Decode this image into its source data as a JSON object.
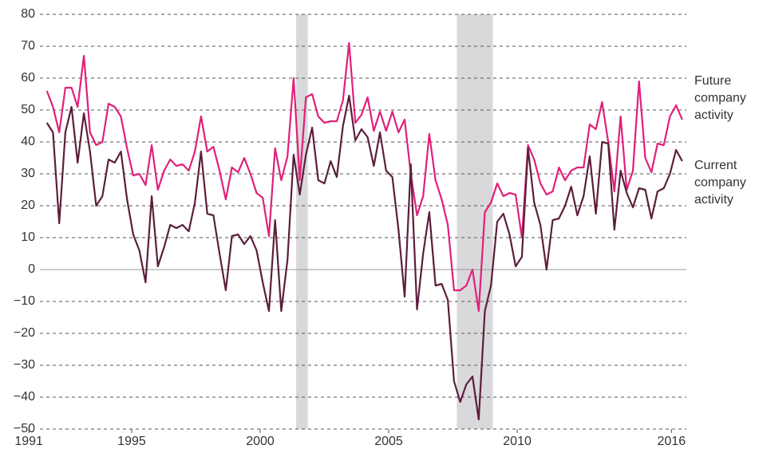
{
  "chart_data": {
    "type": "line",
    "x": [
      1991.7,
      1991.94,
      1992.18,
      1992.42,
      1992.66,
      1992.9,
      1993.14,
      1993.38,
      1993.62,
      1993.86,
      1994.1,
      1994.34,
      1994.58,
      1994.82,
      1995.06,
      1995.3,
      1995.54,
      1995.78,
      1996.02,
      1996.26,
      1996.5,
      1996.74,
      1996.98,
      1997.22,
      1997.46,
      1997.7,
      1997.94,
      1998.18,
      1998.42,
      1998.66,
      1998.9,
      1999.14,
      1999.38,
      1999.62,
      1999.86,
      2000.1,
      2000.34,
      2000.58,
      2000.82,
      2001.06,
      2001.3,
      2001.54,
      2001.78,
      2002.02,
      2002.26,
      2002.5,
      2002.74,
      2002.98,
      2003.22,
      2003.46,
      2003.7,
      2003.94,
      2004.18,
      2004.42,
      2004.66,
      2004.9,
      2005.14,
      2005.38,
      2005.62,
      2005.86,
      2006.1,
      2006.34,
      2006.58,
      2006.82,
      2007.06,
      2007.3,
      2007.54,
      2007.78,
      2008.02,
      2008.26,
      2008.5,
      2008.74,
      2008.98,
      2009.22,
      2009.46,
      2009.7,
      2009.94,
      2010.18,
      2010.42,
      2010.66,
      2010.9,
      2011.14,
      2011.38,
      2011.62,
      2011.86,
      2012.1,
      2012.34,
      2012.58,
      2012.82,
      2013.06,
      2013.3,
      2013.54,
      2013.78,
      2014.02,
      2014.26,
      2014.5,
      2014.74,
      2014.98,
      2015.22,
      2015.46,
      2015.7,
      2015.94,
      2016.18,
      2016.42
    ],
    "series": [
      {
        "name": "Future company activity",
        "color": "#e0207a",
        "values": [
          56,
          51,
          43,
          57,
          57,
          51,
          67,
          43,
          39,
          40,
          52,
          51,
          48,
          38,
          29.5,
          30,
          26.5,
          39,
          25,
          31,
          34.5,
          32.5,
          33,
          31,
          37,
          48,
          37,
          38.5,
          31,
          22,
          32,
          30.5,
          35,
          30,
          24,
          22.5,
          10.5,
          38,
          28,
          35.5,
          60,
          28,
          54,
          55,
          48,
          46,
          46.5,
          46.5,
          53,
          71,
          46,
          48.5,
          54,
          43.5,
          49.5,
          43.5,
          49.5,
          43,
          47,
          30,
          17,
          23,
          42.5,
          28,
          22,
          14,
          -6.5,
          -6.5,
          -5,
          0,
          -13,
          18,
          21,
          27,
          23,
          24,
          23.5,
          10,
          39,
          34.5,
          27,
          23.5,
          24.5,
          32,
          28,
          31,
          32,
          32,
          45.5,
          44,
          52.5,
          40,
          24.5,
          48,
          25,
          31,
          59,
          35,
          30.5,
          39.5,
          39,
          48,
          51.5,
          47
        ]
      },
      {
        "name": "Current company activity",
        "color": "#5b1e3c",
        "values": [
          46,
          43,
          14.5,
          43,
          51,
          33.5,
          49,
          37,
          20,
          23,
          34.5,
          33.5,
          37,
          22,
          11,
          6,
          -4,
          23,
          1,
          7,
          14,
          13,
          14,
          12,
          21,
          37,
          17.5,
          17,
          5,
          -6.5,
          10.5,
          11,
          8,
          10.5,
          6,
          -4,
          -13,
          15.5,
          -13,
          3,
          36,
          23.5,
          36,
          44.5,
          28,
          27,
          34,
          29,
          45,
          54.5,
          40.5,
          44,
          41.5,
          32.5,
          43,
          31,
          29,
          12.5,
          -8.5,
          33,
          -12.5,
          5,
          18,
          -5,
          -4.5,
          -9.5,
          -35,
          -41.5,
          -36,
          -33.5,
          -47,
          -13,
          -5,
          15,
          17.5,
          11,
          1,
          4,
          38,
          21,
          14,
          0,
          15.5,
          16,
          20,
          26,
          17,
          23,
          35.5,
          17.5,
          40,
          39.5,
          12.5,
          31,
          24,
          19.5,
          25.5,
          25,
          16,
          24.5,
          25.5,
          30,
          37.5,
          34
        ]
      }
    ],
    "recessions": [
      [
        2001.4,
        2001.85
      ],
      [
        2007.65,
        2009.05
      ]
    ],
    "xlim": [
      1991.43,
      2016.58
    ],
    "xticks": [
      1991,
      1995,
      2000,
      2005,
      2010,
      2016
    ],
    "ylim": [
      -50,
      80
    ],
    "yticks": [
      {
        "value": -50,
        "label": "−50"
      },
      {
        "value": -40,
        "label": "−40"
      },
      {
        "value": -30,
        "label": "−30"
      },
      {
        "value": -20,
        "label": "−20"
      },
      {
        "value": -10,
        "label": "−10"
      },
      0,
      10,
      20,
      30,
      40,
      50,
      60,
      70,
      80
    ],
    "grid": true
  }
}
